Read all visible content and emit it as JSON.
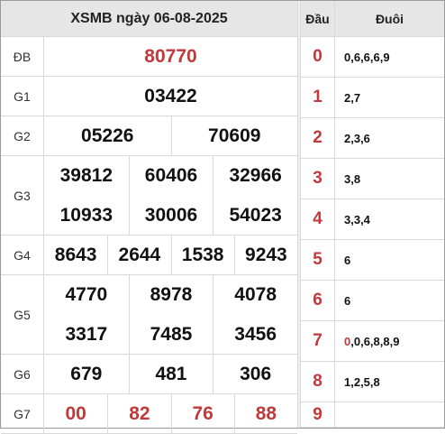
{
  "title": "XSMB ngày 06-08-2025",
  "prizes": [
    {
      "label": "ĐB",
      "rows": [
        [
          "80770"
        ]
      ],
      "red": true
    },
    {
      "label": "G1",
      "rows": [
        [
          "03422"
        ]
      ]
    },
    {
      "label": "G2",
      "rows": [
        [
          "05226",
          "70609"
        ]
      ]
    },
    {
      "label": "G3",
      "rows": [
        [
          "39812",
          "60406",
          "32966"
        ],
        [
          "10933",
          "30006",
          "54023"
        ]
      ]
    },
    {
      "label": "G4",
      "rows": [
        [
          "8643",
          "2644",
          "1538",
          "9243"
        ]
      ]
    },
    {
      "label": "G5",
      "rows": [
        [
          "4770",
          "8978",
          "4078"
        ],
        [
          "3317",
          "7485",
          "3456"
        ]
      ]
    },
    {
      "label": "G6",
      "rows": [
        [
          "679",
          "481",
          "306"
        ]
      ]
    },
    {
      "label": "G7",
      "rows": [
        [
          "00",
          "82",
          "76",
          "88"
        ]
      ],
      "red": true
    }
  ],
  "loto": {
    "head_label": "Đầu",
    "tail_label": "Đuôi",
    "rows": [
      {
        "dau": "0",
        "first": "",
        "rest": "0,6,6,6,9"
      },
      {
        "dau": "1",
        "first": "",
        "rest": "2,7"
      },
      {
        "dau": "2",
        "first": "",
        "rest": "2,3,6"
      },
      {
        "dau": "3",
        "first": "",
        "rest": "3,8"
      },
      {
        "dau": "4",
        "first": "",
        "rest": "3,3,4"
      },
      {
        "dau": "5",
        "first": "",
        "rest": "6"
      },
      {
        "dau": "6",
        "first": "",
        "rest": "6"
      },
      {
        "dau": "7",
        "first": "0",
        "rest": ",0,6,8,8,9"
      },
      {
        "dau": "8",
        "first": "",
        "rest": "1,2,5,8"
      },
      {
        "dau": "9",
        "first": "",
        "rest": ""
      }
    ]
  },
  "colors": {
    "accent_red": "#c0393b",
    "header_bg": "#e6e6e6",
    "grid": "#d9d9d9"
  }
}
